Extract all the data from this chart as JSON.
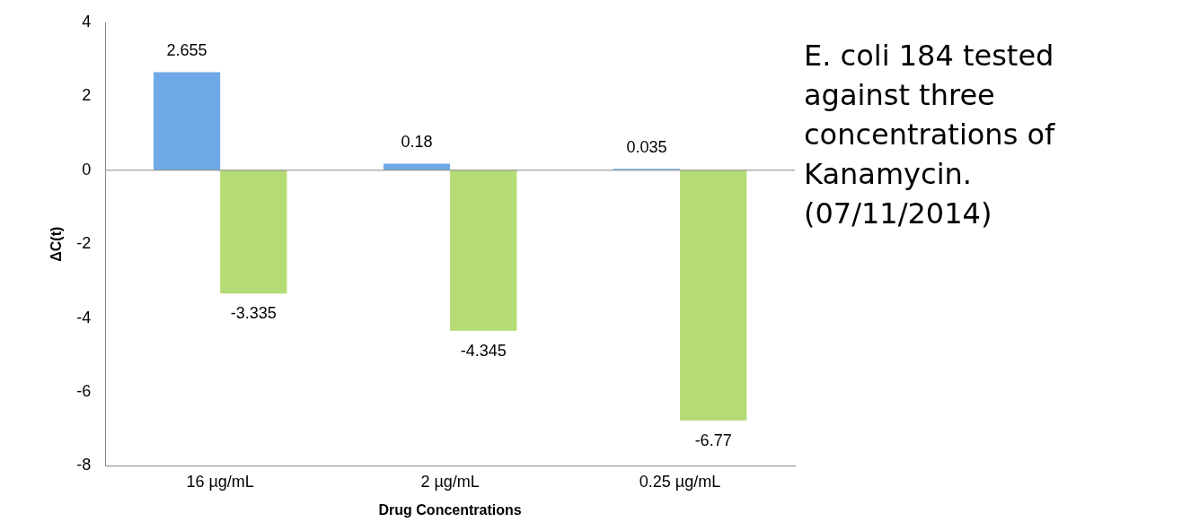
{
  "chart_data": {
    "type": "bar",
    "title": "E. coli 184 tested against three concentrations of Kanamycin. (07/11/2014)",
    "xlabel": "Drug Concentrations",
    "ylabel": "ΔC(t)",
    "categories": [
      "16 µg/mL",
      "2 µg/mL",
      "0.25 µg/mL"
    ],
    "series": [
      {
        "color": "#6fa8e6",
        "values": [
          2.655,
          0.18,
          0.035
        ]
      },
      {
        "color": "#b5db74",
        "values": [
          -3.335,
          -4.345,
          -6.77
        ]
      }
    ],
    "ref_lines": [
      {
        "axis": "y",
        "value": 0,
        "color": "#888888"
      }
    ],
    "ylim": [
      -8,
      4
    ],
    "yticks": [
      -8,
      -6,
      -4,
      -2,
      0,
      2,
      4
    ],
    "grid": false,
    "data_labels": true
  }
}
